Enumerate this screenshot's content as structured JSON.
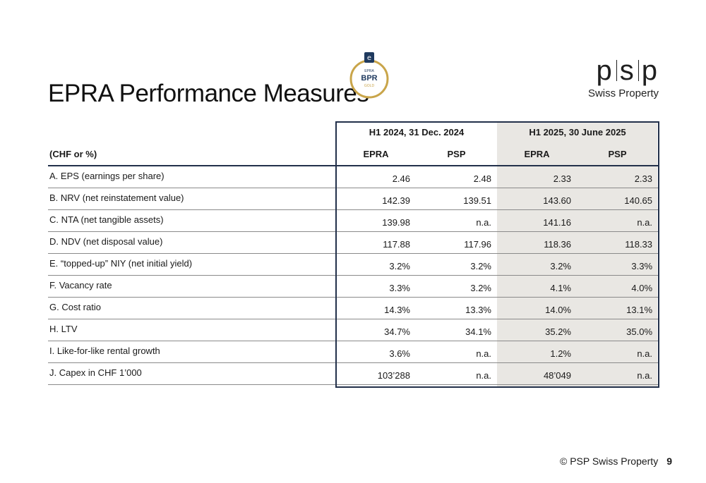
{
  "title": "EPRA Performance Measures",
  "badge": {
    "top": "EPRA",
    "main": "BPR",
    "bottom": "GOLD",
    "emblem": "e"
  },
  "logo": {
    "letters": [
      "p",
      "s",
      "p"
    ],
    "subtitle": "Swiss Property"
  },
  "table": {
    "group_headers": [
      "H1 2024, 31 Dec. 2024",
      "H1 2025, 30 June 2025"
    ],
    "unit_label": "(CHF or %)",
    "sub_headers": [
      "EPRA",
      "PSP",
      "EPRA",
      "PSP"
    ],
    "rows": [
      {
        "label": "A. EPS (earnings per share)",
        "values": [
          "2.46",
          "2.48",
          "2.33",
          "2.33"
        ]
      },
      {
        "label": "B. NRV (net reinstatement value)",
        "values": [
          "142.39",
          "139.51",
          "143.60",
          "140.65"
        ]
      },
      {
        "label": "C. NTA (net tangible assets)",
        "values": [
          "139.98",
          "n.a.",
          "141.16",
          "n.a."
        ]
      },
      {
        "label": "D. NDV (net disposal value)",
        "values": [
          "117.88",
          "117.96",
          "118.36",
          "118.33"
        ]
      },
      {
        "label": "E. “topped-up” NIY (net initial yield)",
        "values": [
          "3.2%",
          "3.2%",
          "3.2%",
          "3.3%"
        ]
      },
      {
        "label": "F. Vacancy rate",
        "values": [
          "3.3%",
          "3.2%",
          "4.1%",
          "4.0%"
        ]
      },
      {
        "label": "G. Cost ratio",
        "values": [
          "14.3%",
          "13.3%",
          "14.0%",
          "13.1%"
        ]
      },
      {
        "label": "H. LTV",
        "values": [
          "34.7%",
          "34.1%",
          "35.2%",
          "35.0%"
        ]
      },
      {
        "label": "I. Like-for-like rental growth",
        "values": [
          "3.6%",
          "n.a.",
          "1.2%",
          "n.a."
        ]
      },
      {
        "label": "J. Capex in CHF 1’000",
        "values": [
          "103’288",
          "n.a.",
          "48’049",
          "n.a."
        ]
      }
    ]
  },
  "footer": {
    "copyright": "© PSP Swiss Property",
    "page_number": "9"
  },
  "colors": {
    "frame": "#22304a",
    "highlight_bg": "#e9e7e3",
    "badge_gold": "#c9a54a",
    "badge_navy": "#1f3a5f"
  }
}
